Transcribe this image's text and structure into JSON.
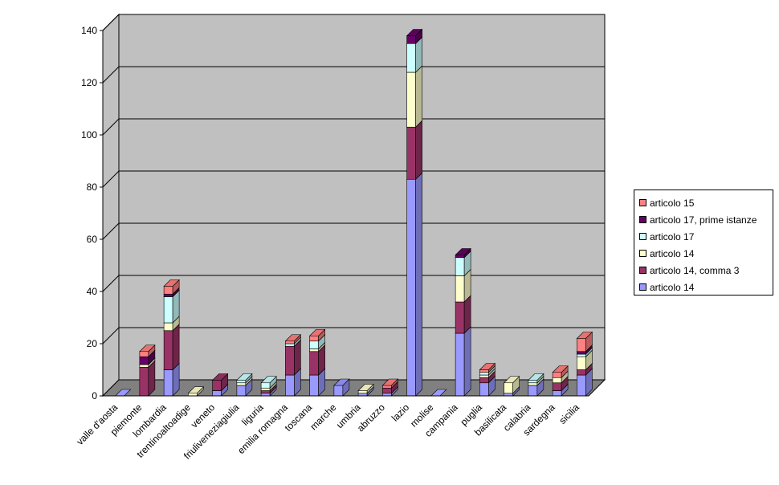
{
  "chart_data": {
    "type": "bar",
    "stacked": true,
    "three_d": true,
    "categories": [
      "valle d'aosta",
      "piemonte",
      "lombardia",
      "trentinoaltoadige",
      "veneto",
      "friuliveneziagiulia",
      "liguria",
      "emilia romagna",
      "toscana",
      "marche",
      "umbria",
      "abruzzo",
      "lazio",
      "molise",
      "campania",
      "puglia",
      "basilicata",
      "calabria",
      "sardegna",
      "sicilia"
    ],
    "series": [
      {
        "name": "articolo 14",
        "color": "#9999FF",
        "values": [
          0,
          0,
          10,
          0,
          2,
          4,
          1,
          8,
          8,
          4,
          1,
          1,
          83,
          0,
          24,
          5,
          1,
          4,
          2,
          8
        ]
      },
      {
        "name": "articolo 14, comma 3",
        "color": "#993366",
        "values": [
          0,
          11,
          15,
          0,
          4,
          0,
          1,
          11,
          9,
          0,
          0,
          2,
          20,
          0,
          12,
          2,
          0,
          0,
          3,
          2
        ]
      },
      {
        "name": "articolo 14",
        "color": "#FFFFCC",
        "values": [
          0,
          1,
          3,
          1,
          0,
          1,
          1,
          0,
          1,
          0,
          1,
          0,
          21,
          0,
          10,
          1,
          4,
          1,
          2,
          5
        ]
      },
      {
        "name": "articolo 17",
        "color": "#CCFFFF",
        "values": [
          0,
          0,
          10,
          0,
          0,
          1,
          2,
          1,
          3,
          0,
          0,
          0,
          11,
          0,
          7,
          1,
          0,
          1,
          0,
          1
        ]
      },
      {
        "name": "articolo 17, prime istanze",
        "color": "#660066",
        "values": [
          0,
          3,
          1,
          0,
          0,
          0,
          0,
          0,
          0,
          0,
          0,
          0,
          3,
          0,
          1,
          0,
          0,
          0,
          0,
          1
        ]
      },
      {
        "name": "articolo 15",
        "color": "#FF8080",
        "values": [
          0,
          2,
          3,
          0,
          0,
          0,
          0,
          1,
          2,
          0,
          0,
          1,
          0,
          0,
          0,
          1,
          0,
          0,
          2,
          5
        ]
      }
    ],
    "legend_order": [
      5,
      4,
      3,
      2,
      1,
      0
    ],
    "y_ticks": [
      "0",
      "20",
      "40",
      "60",
      "80",
      "100",
      "120",
      "140"
    ],
    "ylim": [
      0,
      140
    ],
    "grid": true,
    "legend_position": "right",
    "colors": {
      "wall": "#C0C0C0",
      "floor": "#808080",
      "grid": "#000000"
    }
  }
}
